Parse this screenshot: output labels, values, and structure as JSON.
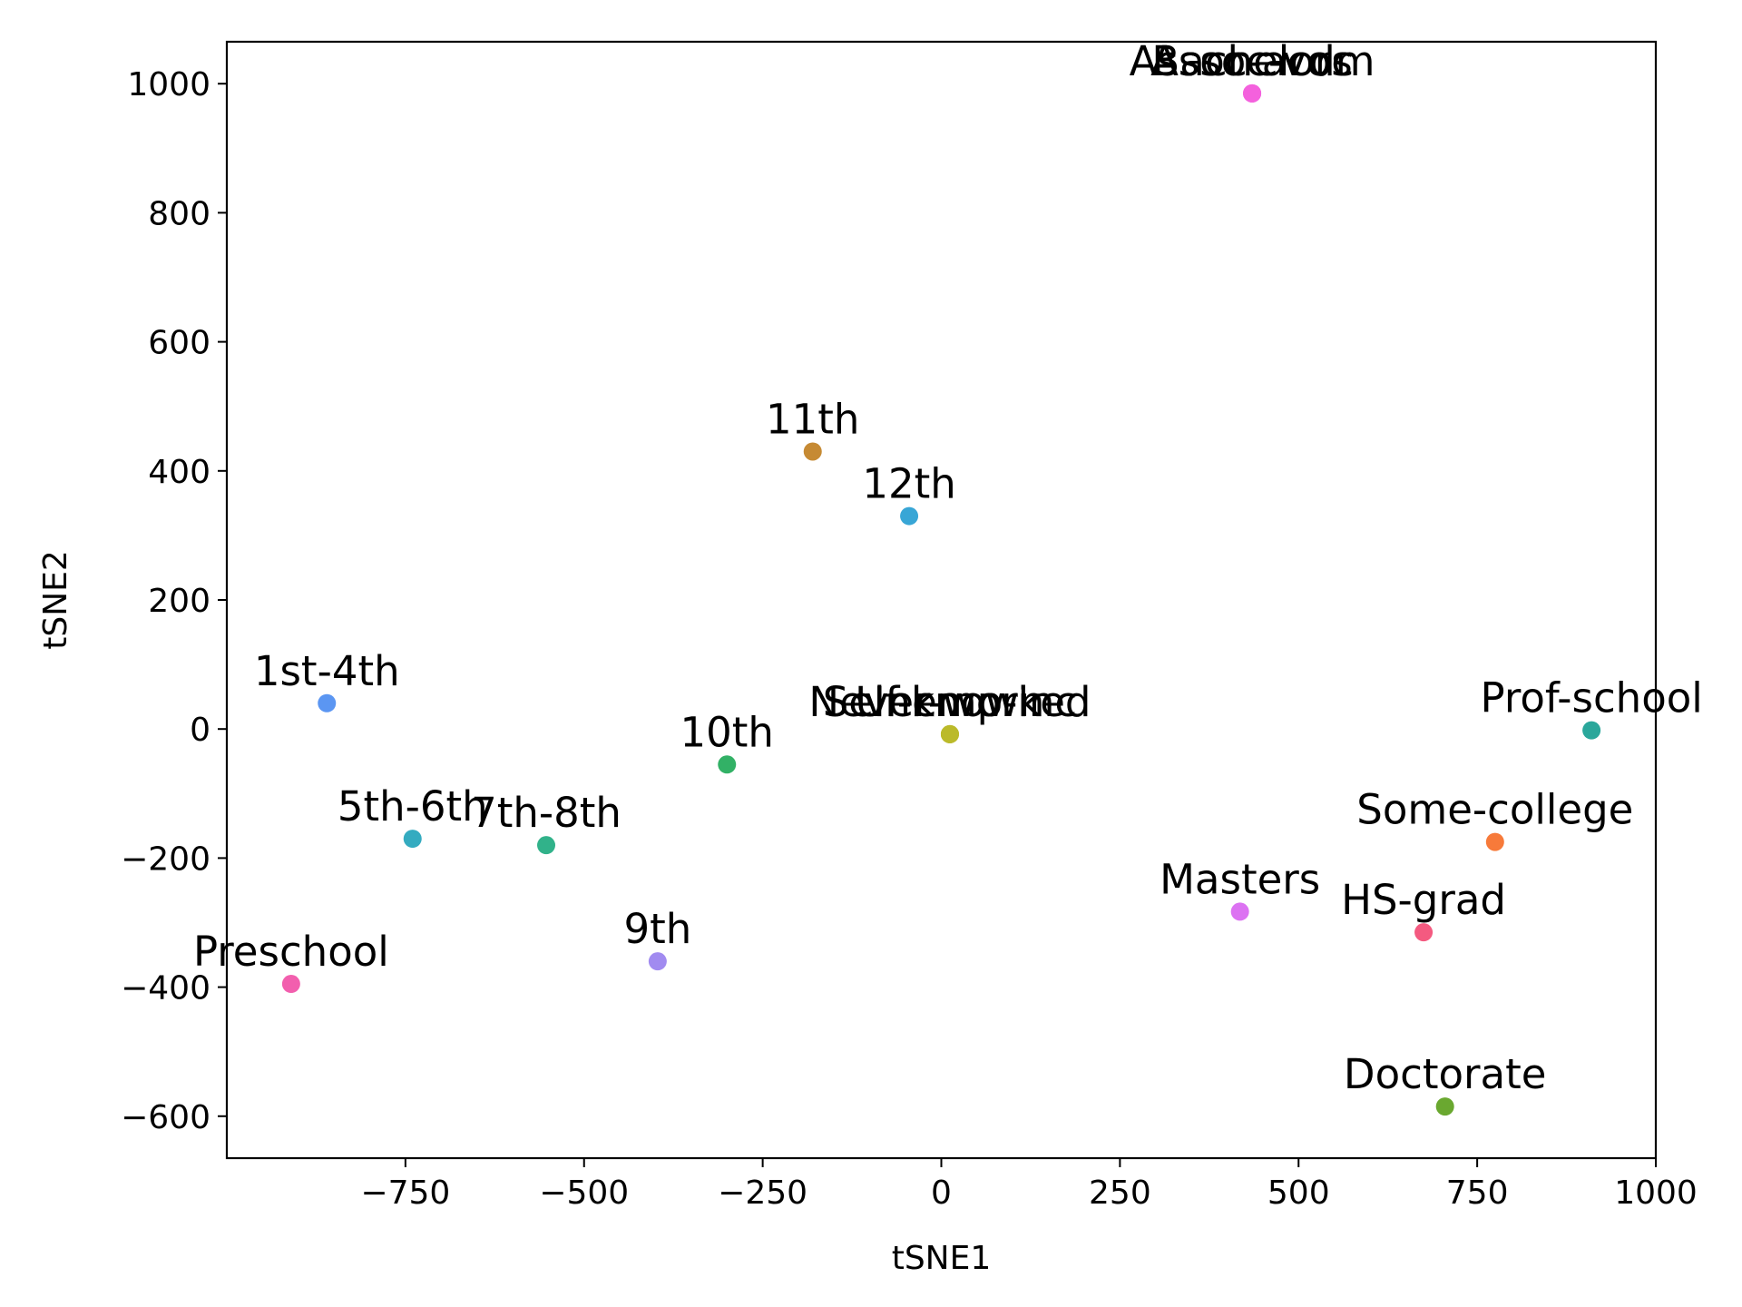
{
  "chart_data": {
    "type": "scatter",
    "title": "",
    "xlabel": "tSNE1",
    "ylabel": "tSNE2",
    "xlim": [
      -1000,
      1000
    ],
    "ylim": [
      -665,
      1065
    ],
    "xticks": [
      -750,
      -500,
      -250,
      0,
      250,
      500,
      750,
      1000
    ],
    "yticks": [
      -600,
      -400,
      -200,
      0,
      200,
      400,
      600,
      800,
      1000
    ],
    "xtick_labels": [
      "−750",
      "−500",
      "−250",
      "0",
      "250",
      "500",
      "750",
      "1000"
    ],
    "ytick_labels": [
      "−600",
      "−400",
      "−200",
      "0",
      "200",
      "400",
      "600",
      "800",
      "1000"
    ],
    "grid": false,
    "points": [
      {
        "label": "Bachelors",
        "x": 435,
        "y": 985,
        "color": "#f461dd"
      },
      {
        "label": "Assoc-acdm",
        "x": 435,
        "y": 985,
        "color": "#f461dd"
      },
      {
        "label": "Assoc-voc",
        "x": 435,
        "y": 985,
        "color": "#f461dd"
      },
      {
        "label": "11th",
        "x": -180,
        "y": 430,
        "color": "#c68a33"
      },
      {
        "label": "12th",
        "x": -45,
        "y": 330,
        "color": "#38a6d6"
      },
      {
        "label": "1st-4th",
        "x": -860,
        "y": 40,
        "color": "#5b96f2"
      },
      {
        "label": "Some-college",
        "x": 775,
        "y": -175,
        "color": "#f77a3a"
      },
      {
        "label": "Prof-school",
        "x": 910,
        "y": -2,
        "color": "#2aa79b"
      },
      {
        "label": "Never-worked",
        "x": 12,
        "y": -8,
        "color": "#bbba2a"
      },
      {
        "label": "Unknown",
        "x": 12,
        "y": -8,
        "color": "#bbba2a"
      },
      {
        "label": "Self-emp-inc",
        "x": 12,
        "y": -8,
        "color": "#bbba2a"
      },
      {
        "label": "10th",
        "x": -300,
        "y": -55,
        "color": "#32b166"
      },
      {
        "label": "5th-6th",
        "x": -740,
        "y": -170,
        "color": "#34abc0"
      },
      {
        "label": "7th-8th",
        "x": -553,
        "y": -180,
        "color": "#31b28a"
      },
      {
        "label": "Masters",
        "x": 418,
        "y": -283,
        "color": "#dc72f2"
      },
      {
        "label": "HS-grad",
        "x": 675,
        "y": -315,
        "color": "#f45a80"
      },
      {
        "label": "9th",
        "x": -397,
        "y": -360,
        "color": "#a18bf0"
      },
      {
        "label": "Preschool",
        "x": -910,
        "y": -395,
        "color": "#f25fae"
      },
      {
        "label": "Doctorate",
        "x": 705,
        "y": -585,
        "color": "#6aa830"
      }
    ]
  }
}
